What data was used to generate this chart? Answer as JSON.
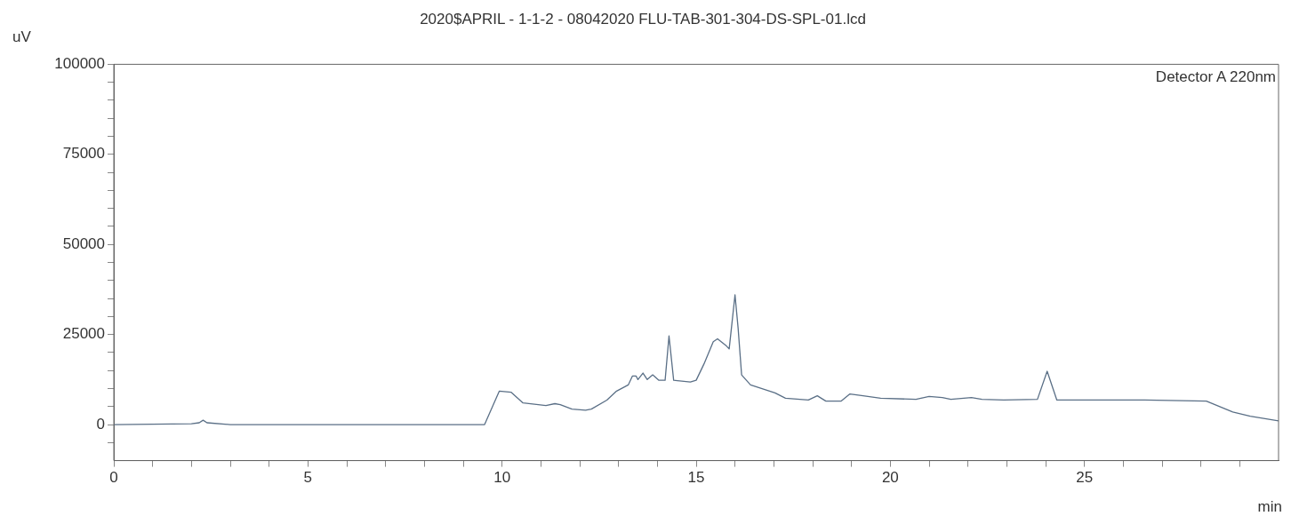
{
  "chart_data": {
    "type": "line",
    "title": "2020$APRIL - 1-1-2 - 08042020 FLU-TAB-301-304-DS-SPL-01.lcd",
    "xlabel": "min",
    "ylabel": "uV",
    "annotations": [
      "Detector A 220nm"
    ],
    "x": [
      0,
      2.0,
      2.2,
      2.3,
      2.4,
      3,
      5,
      9.55,
      9.93,
      10.23,
      10.54,
      11.13,
      11.36,
      11.5,
      11.8,
      12.15,
      12.3,
      12.7,
      12.95,
      13.25,
      13.36,
      13.45,
      13.5,
      13.63,
      13.74,
      13.88,
      14.04,
      14.2,
      14.3,
      14.42,
      14.85,
      15.0,
      15.2,
      15.44,
      15.55,
      15.78,
      15.85,
      16.0,
      16.08,
      16.17,
      16.4,
      17.03,
      17.3,
      17.89,
      18.12,
      18.34,
      18.73,
      18.96,
      19.3,
      19.75,
      20.66,
      21.0,
      21.34,
      21.56,
      22.09,
      22.36,
      22.92,
      23.79,
      24.04,
      24.29,
      26.55,
      28.14,
      28.82,
      29.27,
      30.0
    ],
    "series": [
      {
        "color": "#5a6f86",
        "values": [
          0,
          200,
          500,
          1200,
          500,
          0,
          0,
          0,
          9300,
          9000,
          6000,
          5300,
          5800,
          5500,
          4300,
          4000,
          4300,
          6800,
          9300,
          11000,
          13500,
          13500,
          12500,
          14300,
          12500,
          13800,
          12300,
          12300,
          24600,
          12300,
          11800,
          12300,
          16800,
          23000,
          23800,
          21800,
          21000,
          36000,
          26800,
          13800,
          11000,
          8800,
          7300,
          6800,
          8000,
          6500,
          6500,
          8500,
          8000,
          7300,
          7000,
          7800,
          7500,
          7000,
          7500,
          7000,
          6800,
          7000,
          14800,
          6800,
          6800,
          6500,
          3500,
          2300,
          1000
        ]
      }
    ],
    "xlim": [
      0,
      30
    ],
    "ylim": [
      -10000,
      100000
    ],
    "xticks": [
      0,
      {
        "value": 1,
        "label": null
      },
      {
        "value": 2,
        "label": null
      },
      {
        "value": 3,
        "label": null
      },
      {
        "value": 4,
        "label": null
      },
      5,
      {
        "value": 6,
        "label": null
      },
      {
        "value": 7,
        "label": null
      },
      {
        "value": 8,
        "label": null
      },
      {
        "value": 9,
        "label": null
      },
      10,
      {
        "value": 11,
        "label": null
      },
      {
        "value": 12,
        "label": null
      },
      {
        "value": 13,
        "label": null
      },
      {
        "value": 14,
        "label": null
      },
      15,
      {
        "value": 16,
        "label": null
      },
      {
        "value": 17,
        "label": null
      },
      {
        "value": 18,
        "label": null
      },
      {
        "value": 19,
        "label": null
      },
      20,
      {
        "value": 21,
        "label": null
      },
      {
        "value": 22,
        "label": null
      },
      {
        "value": 23,
        "label": null
      },
      {
        "value": 24,
        "label": null
      },
      25,
      {
        "value": 26,
        "label": null
      },
      {
        "value": 27,
        "label": null
      },
      {
        "value": 28,
        "label": null
      },
      {
        "value": 29,
        "label": null
      }
    ],
    "yticks": [
      {
        "value": -5000,
        "label": null
      },
      0,
      {
        "value": 5000,
        "label": null
      },
      {
        "value": 10000,
        "label": null
      },
      {
        "value": 15000,
        "label": null
      },
      {
        "value": 20000,
        "label": null
      },
      25000,
      {
        "value": 30000,
        "label": null
      },
      {
        "value": 35000,
        "label": null
      },
      {
        "value": 40000,
        "label": null
      },
      {
        "value": 45000,
        "label": null
      },
      50000,
      {
        "value": 55000,
        "label": null
      },
      {
        "value": 60000,
        "label": null
      },
      {
        "value": 65000,
        "label": null
      },
      {
        "value": 70000,
        "label": null
      },
      75000,
      {
        "value": 80000,
        "label": null
      },
      {
        "value": 85000,
        "label": null
      },
      {
        "value": 90000,
        "label": null
      },
      {
        "value": 95000,
        "label": null
      },
      100000
    ],
    "grid": false,
    "legend": false,
    "marker": "none",
    "line_style": "solid"
  }
}
